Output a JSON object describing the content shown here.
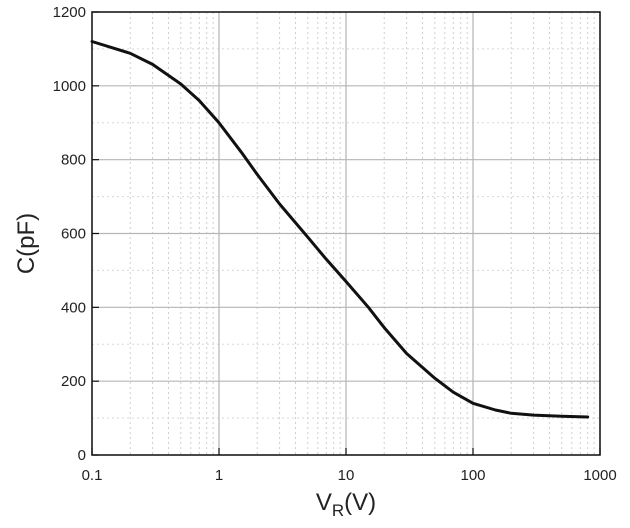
{
  "chart_data": {
    "type": "line",
    "title": "",
    "xlabel": "V",
    "xlabel_sub": "R",
    "xlabel_unit": "(V)",
    "ylabel": "C(pF)",
    "x_scale": "log",
    "xlim": [
      0.1,
      1000
    ],
    "ylim": [
      0,
      1200
    ],
    "grid": true,
    "x_ticks": [
      0.1,
      1,
      10,
      100,
      1000
    ],
    "x_tick_labels": [
      "0.1",
      "1",
      "10",
      "100",
      "1000"
    ],
    "y_ticks": [
      0,
      200,
      400,
      600,
      800,
      1000,
      1200
    ],
    "y_tick_labels": [
      "0",
      "200",
      "400",
      "600",
      "800",
      "1000",
      "1200"
    ],
    "series": [
      {
        "color": "#111111",
        "x": [
          0.1,
          0.2,
          0.3,
          0.5,
          0.7,
          1,
          1.5,
          2,
          3,
          5,
          7,
          10,
          15,
          20,
          30,
          50,
          70,
          100,
          150,
          200,
          300,
          500,
          800
        ],
        "y": [
          1120,
          1088,
          1058,
          1005,
          960,
          900,
          820,
          760,
          680,
          590,
          530,
          470,
          400,
          345,
          275,
          208,
          170,
          140,
          122,
          113,
          108,
          105,
          103
        ]
      }
    ]
  }
}
